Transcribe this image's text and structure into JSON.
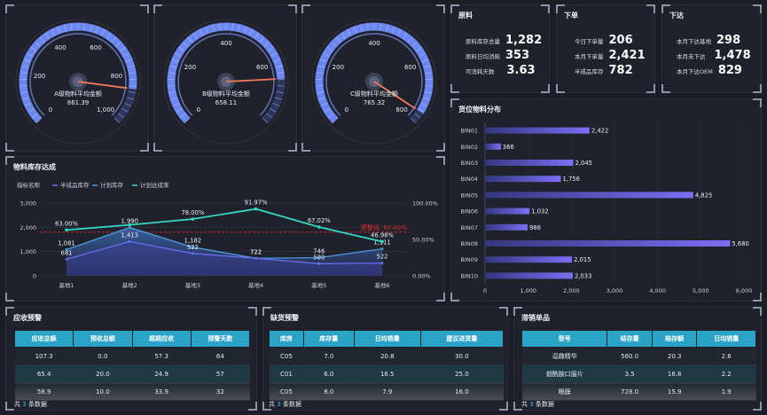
{
  "gauges": [
    {
      "label": "A级物料平均金额",
      "value": "861.39",
      "value_num": 861.39,
      "ticks": [
        "0",
        "200",
        "400",
        "600",
        "800",
        "1,000"
      ],
      "tick_vals": [
        0,
        200,
        400,
        600,
        800,
        1000
      ],
      "max": 1000
    },
    {
      "label": "B级物料平均金额",
      "value": "658.11",
      "value_num": 658.11,
      "ticks": [
        "0",
        "200",
        "400",
        "600"
      ],
      "tick_vals": [
        0,
        200,
        400,
        600
      ],
      "max": 800
    },
    {
      "label": "C级物料平均金额",
      "value": "765.32",
      "value_num": 765.32,
      "ticks": [
        "0",
        "200",
        "400",
        "600",
        "800"
      ],
      "tick_vals": [
        0,
        200,
        400,
        600,
        800
      ],
      "max": 800
    }
  ],
  "stats": {
    "raw": {
      "title": "原料",
      "rows": [
        {
          "k": "原料库存总量",
          "v": "1,282"
        },
        {
          "k": "原料日均消耗",
          "v": "353"
        },
        {
          "k": "可消耗天数",
          "v": "3.63"
        }
      ]
    },
    "order": {
      "title": "下单",
      "rows": [
        {
          "k": "今日下单量",
          "v": "206"
        },
        {
          "k": "本月下单量",
          "v": "2,421"
        },
        {
          "k": "半成品库存",
          "v": "782"
        }
      ]
    },
    "issue": {
      "title": "下达",
      "rows": [
        {
          "k": "本月下达基地",
          "v": "298"
        },
        {
          "k": "本月未下达",
          "v": "1,478"
        },
        {
          "k": "本月下达OEM",
          "v": "829"
        }
      ]
    }
  },
  "inventory": {
    "title": "物料库存达成",
    "legend_title": "指标名称",
    "warning_label": "预警线: 60.00%"
  },
  "chart_data": [
    {
      "type": "line",
      "title": "物料库存达成",
      "categories": [
        "基地1",
        "基地2",
        "基地3",
        "基地4",
        "基地5",
        "基地6"
      ],
      "series": [
        {
          "name": "半成品库存",
          "values": [
            681,
            1413,
            922,
            722,
            500,
            522
          ],
          "color": "#6a6ff0"
        },
        {
          "name": "计划库存",
          "values": [
            1081,
            1990,
            1182,
            722,
            746,
            1111
          ],
          "color": "#4d9be0"
        },
        {
          "name": "计划达成率",
          "values": [
            63.0,
            70.0,
            78.0,
            91.97,
            67.02,
            46.98
          ],
          "color": "#33d6c4",
          "axis": "right"
        }
      ],
      "labels": {
        "半成品库存": [
          "681",
          "1,413",
          "922",
          "722",
          "500",
          "522"
        ],
        "计划库存": [
          "1,081",
          "1,990",
          "1,182",
          "722",
          "746",
          "1,111"
        ],
        "计划达成率": [
          "63.00%",
          "",
          "78.00%",
          "91.97%",
          "67.02%",
          "46.98%"
        ]
      },
      "ylim": [
        0,
        3000
      ],
      "yticks": [
        "0",
        "1,000",
        "2,000",
        "3,000"
      ],
      "y2lim": [
        0,
        100
      ],
      "y2ticks": [
        "0.00%",
        "50.00%",
        "100.00%"
      ],
      "warning": 60
    },
    {
      "type": "bar",
      "title": "货位物料分布",
      "categories": [
        "BIN01",
        "BIN02",
        "BIN03",
        "BIN04",
        "BIN05",
        "BIN06",
        "BIN07",
        "BIN08",
        "BIN09",
        "BIN10"
      ],
      "values": [
        2422,
        366,
        2045,
        1756,
        4825,
        1032,
        986,
        5680,
        2015,
        2033
      ],
      "value_labels": [
        "2,422",
        "366",
        "2,045",
        "1,756",
        "4,825",
        "1,032",
        "986",
        "5,680",
        "2,015",
        "2,033"
      ],
      "xlim": [
        0,
        6000
      ],
      "xticks": [
        "0",
        "1,000",
        "2,000",
        "3,000",
        "4,000",
        "5,000",
        "6,000"
      ]
    }
  ],
  "receivable": {
    "title": "应收预警",
    "headers": [
      "应收总额",
      "预收总额",
      "超期应收",
      "预警天数"
    ],
    "rows": [
      [
        "107.3",
        "0.0",
        "57.3",
        "64"
      ],
      [
        "65.4",
        "20.0",
        "24.9",
        "57"
      ],
      [
        "58.9",
        "10.0",
        "33.9",
        "32"
      ]
    ],
    "footer_pre": "共",
    "footer_n": "3",
    "footer_post": "条数据"
  },
  "shortage": {
    "title": "缺货预警",
    "headers": [
      "库房",
      "库存量",
      "日均销量",
      "建议进货量"
    ],
    "rows": [
      [
        "C05",
        "7.0",
        "20.8",
        "30.0"
      ],
      [
        "C01",
        "6.0",
        "16.5",
        "25.0"
      ],
      [
        "C05",
        "8.0",
        "7.9",
        "16.0"
      ]
    ],
    "footer_pre": "共",
    "footer_n": "3",
    "footer_post": "条数据"
  },
  "slow": {
    "title": "滞销单品",
    "headers": [
      "型号",
      "结存量",
      "结存额",
      "日均销量"
    ],
    "rows": [
      [
        "逗趣精华",
        "560.0",
        "20.3",
        "2.6"
      ],
      [
        "烟酰胺口服片",
        "3.5",
        "16.8",
        "2.2"
      ],
      [
        "眼膜",
        "728.0",
        "15.9",
        "1.9"
      ]
    ],
    "footer_pre": "共",
    "footer_n": "3",
    "footer_post": "条数据"
  },
  "colors": {
    "bg": "#1b1e26",
    "panel": "#1f222b",
    "accent": "#2aa3c6",
    "gauge": "#5c7cf0",
    "bar_start": "#3a3e8e",
    "bar_end": "#7a6ff5",
    "warning": "#e02a2a"
  }
}
